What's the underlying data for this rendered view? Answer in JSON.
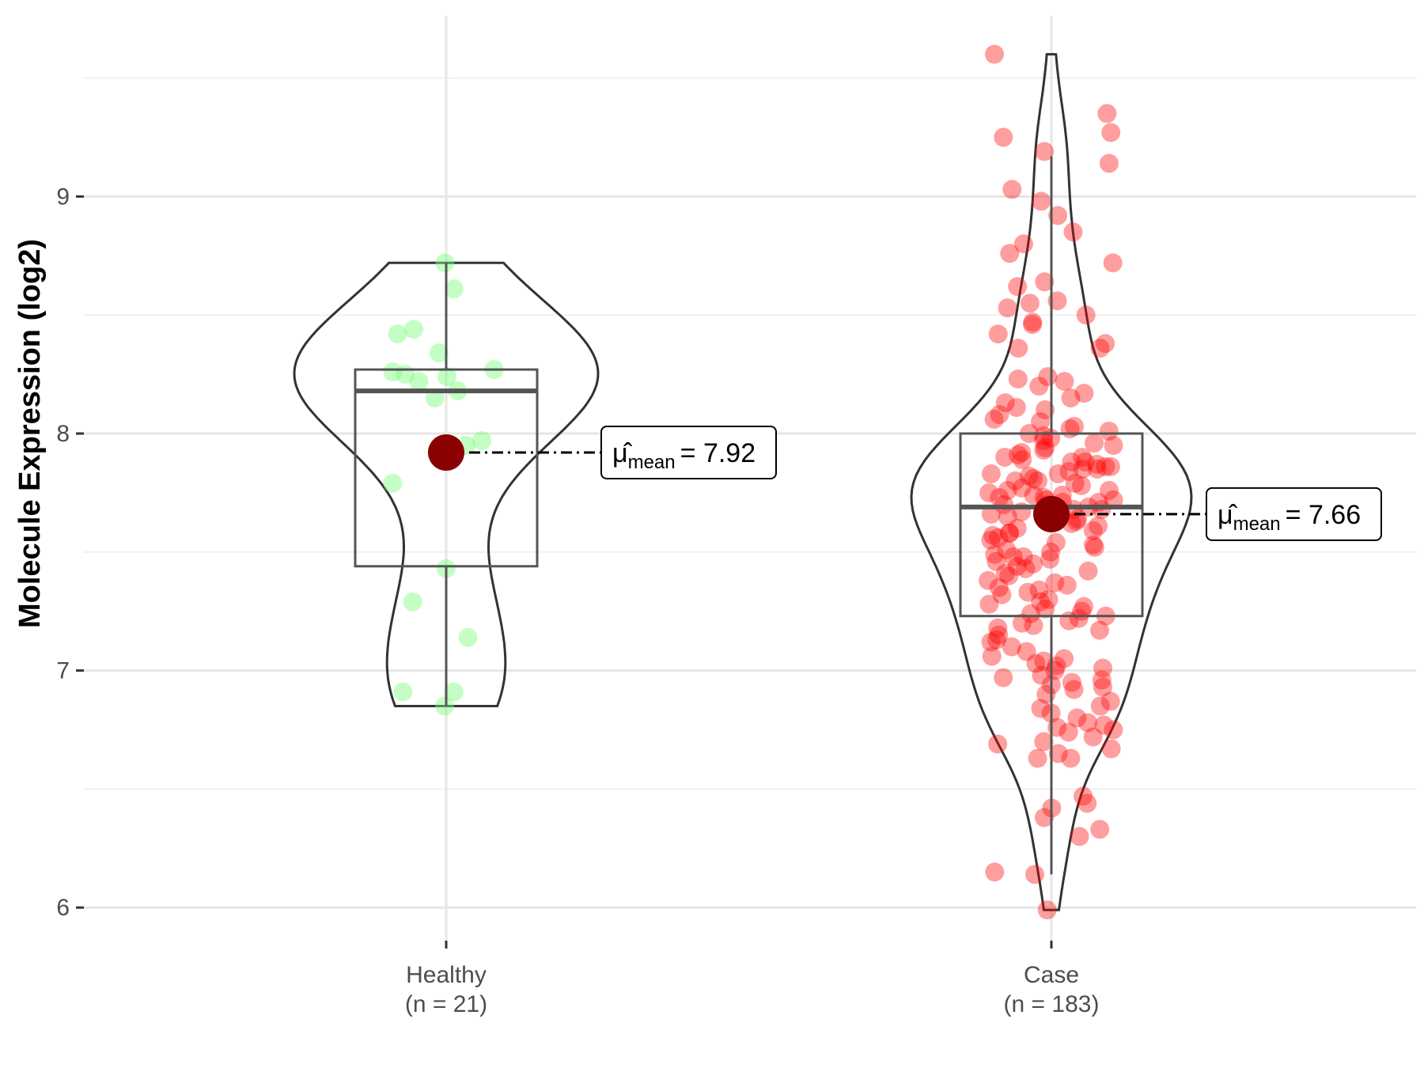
{
  "chart_data": {
    "type": "violin-box-jitter",
    "ylabel": "Molecule Expression (log2)",
    "xlabel": "",
    "ylim": [
      5.85,
      9.75
    ],
    "yticks": [
      6,
      7,
      8,
      9
    ],
    "grid": true,
    "groups": [
      {
        "name": "Healthy",
        "n_label": "(n = 21)",
        "color": "#7CFC7C",
        "mean": 7.92,
        "mean_label": "= 7.92",
        "box": {
          "lower_whisker": 6.85,
          "q1": 7.44,
          "median": 8.18,
          "q3": 8.27,
          "upper_whisker": 8.72
        },
        "values": [
          8.72,
          8.61,
          8.42,
          8.44,
          8.34,
          8.24,
          8.26,
          8.27,
          8.18,
          8.15,
          8.22,
          7.97,
          7.95,
          7.79,
          7.43,
          7.29,
          7.14,
          6.91,
          6.91,
          6.85,
          8.25
        ]
      },
      {
        "name": "Case",
        "n_label": "(n = 183)",
        "color": "#FF0000",
        "mean": 7.66,
        "mean_label": "= 7.66",
        "box": {
          "lower_whisker": 6.14,
          "q1": 7.23,
          "median": 7.69,
          "q3": 8.0,
          "upper_whisker": 9.17
        },
        "values": [
          9.6,
          9.35,
          9.27,
          9.25,
          9.19,
          9.14,
          9.03,
          8.98,
          8.92,
          8.85,
          8.8,
          8.76,
          8.72,
          8.64,
          8.62,
          8.56,
          8.55,
          8.53,
          8.5,
          8.47,
          8.46,
          8.42,
          8.38,
          8.36,
          8.36,
          8.24,
          8.23,
          8.22,
          8.2,
          8.17,
          8.15,
          8.13,
          8.11,
          8.1,
          8.08,
          8.06,
          8.05,
          8.03,
          8.02,
          8.01,
          8.0,
          7.99,
          7.98,
          7.97,
          7.96,
          7.94,
          7.93,
          7.92,
          7.91,
          7.9,
          7.9,
          7.89,
          7.88,
          7.87,
          7.86,
          7.86,
          7.85,
          7.85,
          7.84,
          7.83,
          7.83,
          7.82,
          7.81,
          7.8,
          7.8,
          7.79,
          7.78,
          7.77,
          7.76,
          7.75,
          7.74,
          7.74,
          7.73,
          7.73,
          7.72,
          7.72,
          7.71,
          7.71,
          7.7,
          7.7,
          7.69,
          7.68,
          7.67,
          7.66,
          7.65,
          7.64,
          7.63,
          7.62,
          7.61,
          7.6,
          7.59,
          7.58,
          7.57,
          7.56,
          7.55,
          7.54,
          7.53,
          7.52,
          7.51,
          7.5,
          7.49,
          7.48,
          7.47,
          7.46,
          7.45,
          7.44,
          7.43,
          7.42,
          7.41,
          7.4,
          7.38,
          7.36,
          7.35,
          7.34,
          7.32,
          7.3,
          7.29,
          7.28,
          7.27,
          7.26,
          7.25,
          7.24,
          7.23,
          7.22,
          7.21,
          7.2,
          7.19,
          7.18,
          7.17,
          7.15,
          7.13,
          7.1,
          7.08,
          7.06,
          7.05,
          7.04,
          7.03,
          7.02,
          7.01,
          7.0,
          6.98,
          6.97,
          6.96,
          6.95,
          6.94,
          6.93,
          6.92,
          6.9,
          6.87,
          6.85,
          6.84,
          6.82,
          6.8,
          6.78,
          6.77,
          6.76,
          6.75,
          6.74,
          6.72,
          6.7,
          6.69,
          6.67,
          6.65,
          6.63,
          6.63,
          6.47,
          6.44,
          6.42,
          6.38,
          6.33,
          6.3,
          6.15,
          6.14,
          5.99,
          7.95,
          7.88,
          7.76,
          7.68,
          7.58,
          7.48,
          7.37,
          7.33,
          7.12
        ]
      }
    ],
    "mean_symbol": "μ̂",
    "mean_subscript": "mean",
    "mean_point_color": "#8B0000"
  }
}
